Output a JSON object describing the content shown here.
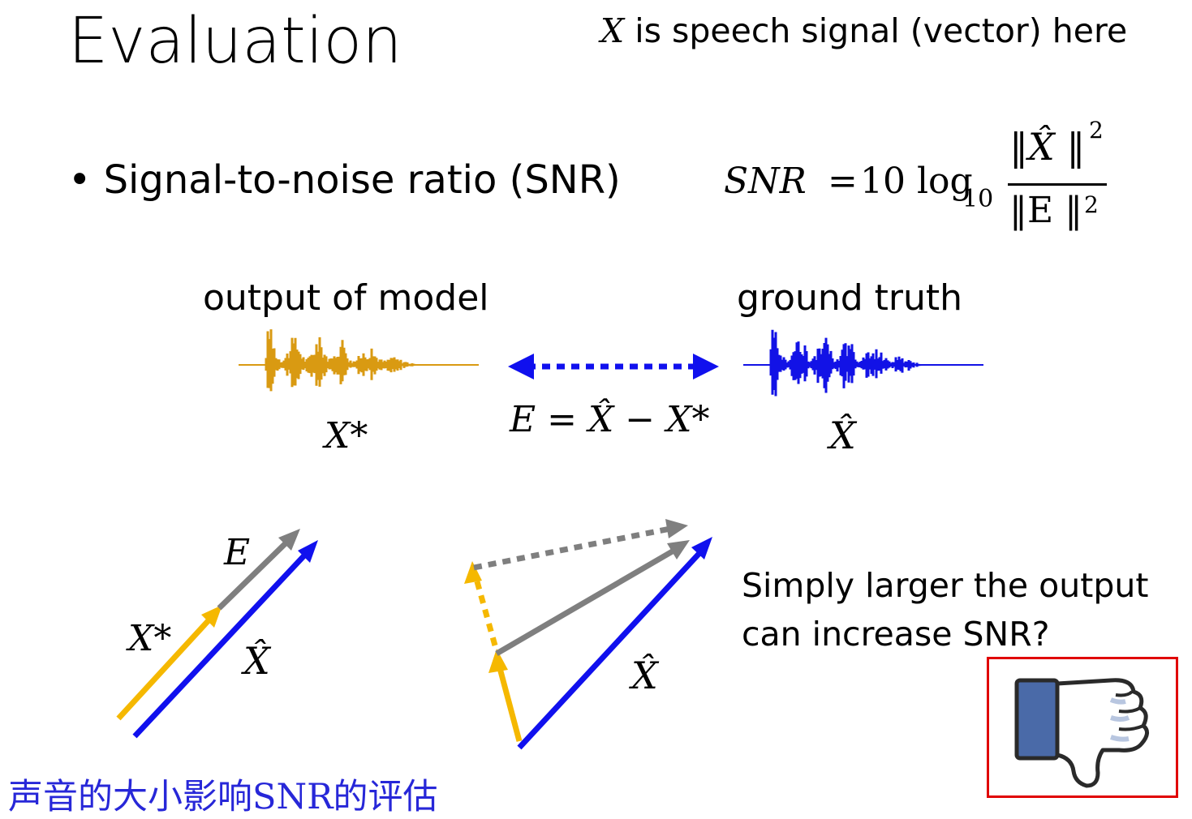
{
  "slide": {
    "title": "Evaluation",
    "note_var": "X",
    "note_text": " is speech signal (vector) here",
    "bullet": "Signal-to-noise ratio (SNR)",
    "formula": {
      "lhs": "SNR",
      "equals": "=",
      "coef": "10 log",
      "sub": "10",
      "numerator": "‖X̂ ‖",
      "denominator": "‖E ‖",
      "power": "2"
    },
    "output_label": "output of model",
    "truth_label": "ground truth",
    "output_symbol": "X*",
    "truth_symbol": "X̂",
    "error_eq": "E = X̂ − X*",
    "diagram1": {
      "e_label": "E",
      "xstar_label": "X*",
      "xhat_label": "X̂"
    },
    "diagram2": {
      "xhat_label": "X̂"
    },
    "question_line1": "Simply larger the output",
    "question_line2": "can increase SNR?",
    "chinese_note": "声音的大小影响SNR的评估",
    "thumb_icon": "thumbs-down-icon",
    "colors": {
      "orange": "#f5b800",
      "blue": "#1010ee",
      "gray": "#7f7f7f",
      "wave_orange": "#d99a12",
      "wave_blue": "#1212e6",
      "red": "#e00000",
      "cn_blue": "#2727d8"
    }
  }
}
